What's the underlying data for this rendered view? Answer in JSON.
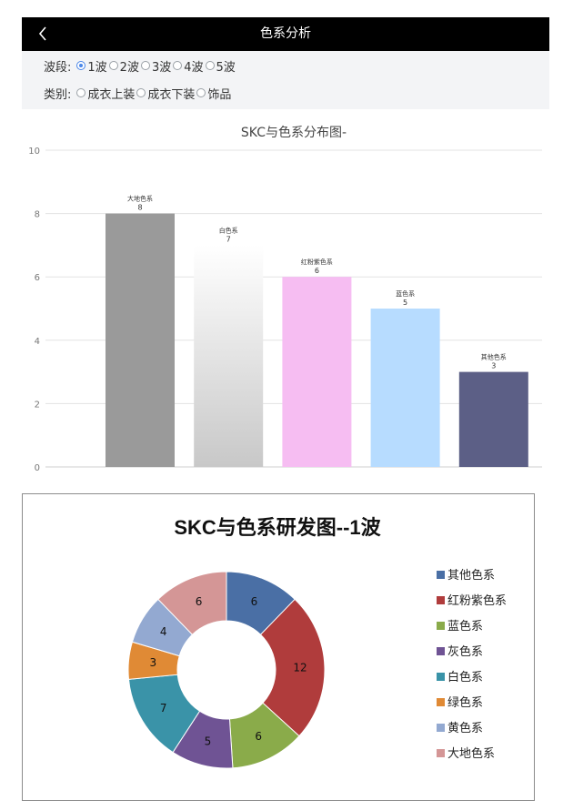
{
  "header": {
    "back_icon": "chevron-left-icon",
    "title": "色系分析"
  },
  "filters": {
    "wave_label": "波段:",
    "wave_options": [
      "1波",
      "2波",
      "3波",
      "4波",
      "5波"
    ],
    "wave_selected": 0,
    "category_label": "类别:",
    "category_options": [
      "成衣上装",
      "成衣下装",
      "饰品"
    ],
    "category_selected": -1
  },
  "chart_data": [
    {
      "type": "bar",
      "title": "SKC与色系分布图-",
      "categories": [
        "大地色系",
        "白色系",
        "红粉紫色系",
        "蓝色系",
        "其他色系"
      ],
      "values": [
        8,
        7,
        6,
        5,
        3
      ],
      "colors": [
        "#9a9a9a",
        "gradient:#ffffff-#c8c8c8",
        "#f6bdf2",
        "#b7dcff",
        "#5c5f86"
      ],
      "ylim": [
        0,
        10
      ],
      "yticks": [
        0,
        2,
        4,
        6,
        8,
        10
      ],
      "grid": true,
      "xlabel": "",
      "ylabel": ""
    },
    {
      "type": "pie",
      "style": "donut",
      "title": "SKC与色系研发图--1波",
      "legend_position": "right",
      "categories": [
        "其他色系",
        "红粉紫色系",
        "蓝色系",
        "灰色系",
        "白色系",
        "绿色系",
        "黄色系",
        "大地色系"
      ],
      "values": [
        6,
        12,
        6,
        5,
        7,
        3,
        4,
        6
      ],
      "colors": [
        "#4a6fa5",
        "#b03c3c",
        "#8aab4a",
        "#6f5394",
        "#3a93a8",
        "#e08a35",
        "#93a9d1",
        "#d49696"
      ]
    }
  ]
}
